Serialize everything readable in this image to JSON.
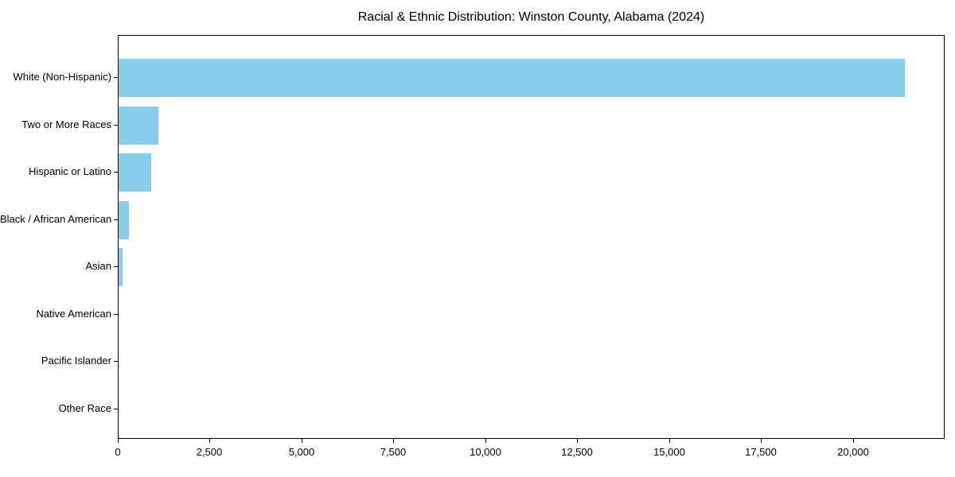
{
  "title": "Racial & Ethnic Distribution: Winston County, Alabama (2024)",
  "chart_data": {
    "type": "bar",
    "orientation": "horizontal",
    "title": "Racial & Ethnic Distribution: Winston County, Alabama (2024)",
    "categories": [
      "White (Non-Hispanic)",
      "Two or More Races",
      "Hispanic or Latino",
      "Black / African American",
      "Asian",
      "Native American",
      "Pacific Islander",
      "Other Race"
    ],
    "values": [
      21400,
      1090,
      890,
      275,
      100,
      0,
      0,
      0
    ],
    "xlabel": "",
    "ylabel": "",
    "xlim": [
      0,
      22500
    ],
    "xticks": [
      0,
      2500,
      5000,
      7500,
      10000,
      12500,
      15000,
      17500,
      20000
    ],
    "xtick_labels": [
      "0",
      "2,500",
      "5,000",
      "7,500",
      "10,000",
      "12,500",
      "15,000",
      "17,500",
      "20,000"
    ],
    "grid": false,
    "legend": null,
    "bar_color": "#87CEEB",
    "background_color": "#FFFFFF",
    "axis_color": "#000000"
  }
}
